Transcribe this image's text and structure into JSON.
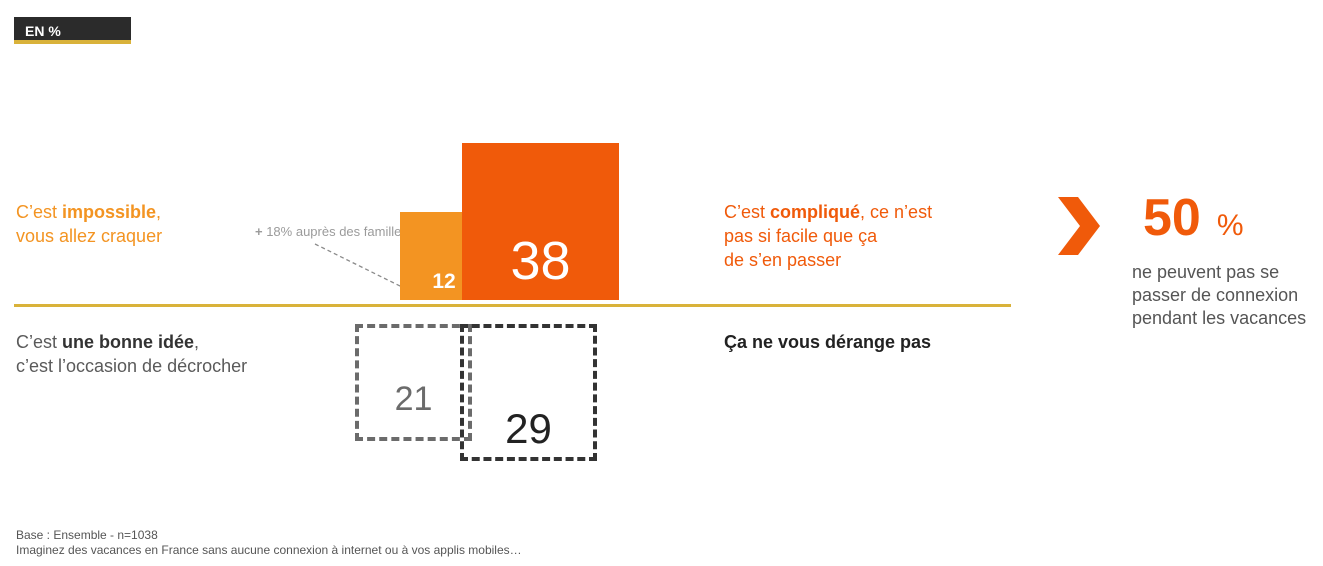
{
  "unit_badge": "EN %",
  "chart_data": {
    "type": "bar",
    "categories": [
      "C’est impossible, vous allez craquer",
      "C’est compliqué, ce n’est pas si facile que ça de s’en passer",
      "C’est une bonne idée, c’est l’occasion de décrocher",
      "Ça ne vous dérange pas"
    ],
    "values": [
      12,
      38,
      21,
      29
    ],
    "annotation": {
      "bold": "+",
      "text": " 18% auprès des familles"
    }
  },
  "labels": {
    "impossible": {
      "pre": "C’est ",
      "bold": "impossible",
      "post": ",",
      "line2": "vous allez craquer"
    },
    "complique": {
      "pre": "C’est ",
      "bold": "compliqué",
      "post": ", ce n’est",
      "line2": "pas si facile que ça",
      "line3": "de s’en passer"
    },
    "bonne_idee": {
      "pre": "C’est ",
      "bold": "une bonne idée",
      "post": ",",
      "line2": "c’est l’occasion de décrocher"
    },
    "derange": {
      "text": "Ça ne vous dérange pas"
    }
  },
  "summary": {
    "value": "50",
    "unit": "%",
    "line1": "ne peuvent pas se",
    "line2": "passer de connexion",
    "line3": "pendant les vacances"
  },
  "footnote": {
    "line1": "Base : Ensemble - n=1038",
    "line2": "Imaginez des vacances en France sans aucune connexion à internet ou à vos applis mobiles…"
  },
  "colors": {
    "orange_light": "#f39422",
    "orange_dark": "#f05a0a",
    "gold": "#d9b23a",
    "grey": "#6b6b6b",
    "dark": "#333333"
  }
}
